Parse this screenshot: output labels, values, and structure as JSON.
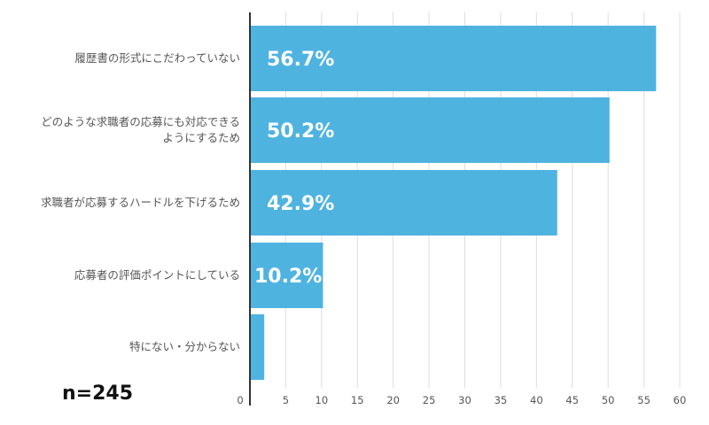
{
  "chart_data": {
    "type": "bar",
    "orientation": "horizontal",
    "categories": [
      [
        "履歴書の形式にこだわっていない"
      ],
      [
        "どのような求職者の応募にも対応できる",
        "ようにするため"
      ],
      [
        "求職者が応募するハードルを下げるため"
      ],
      [
        "応募者の評価ポイントにしている"
      ],
      [
        "特にない・分からない"
      ]
    ],
    "values": [
      56.7,
      50.2,
      42.9,
      10.2,
      2.0
    ],
    "data_labels": [
      "56.7%",
      "50.2%",
      "42.9%",
      "10.2%",
      ""
    ],
    "xlim": [
      0,
      60
    ],
    "x_ticks": [
      0,
      5,
      10,
      15,
      20,
      25,
      30,
      35,
      40,
      45,
      50,
      55,
      60
    ],
    "grid": true,
    "bar_color": "#4fb3e0",
    "sample_size": "n=245"
  }
}
